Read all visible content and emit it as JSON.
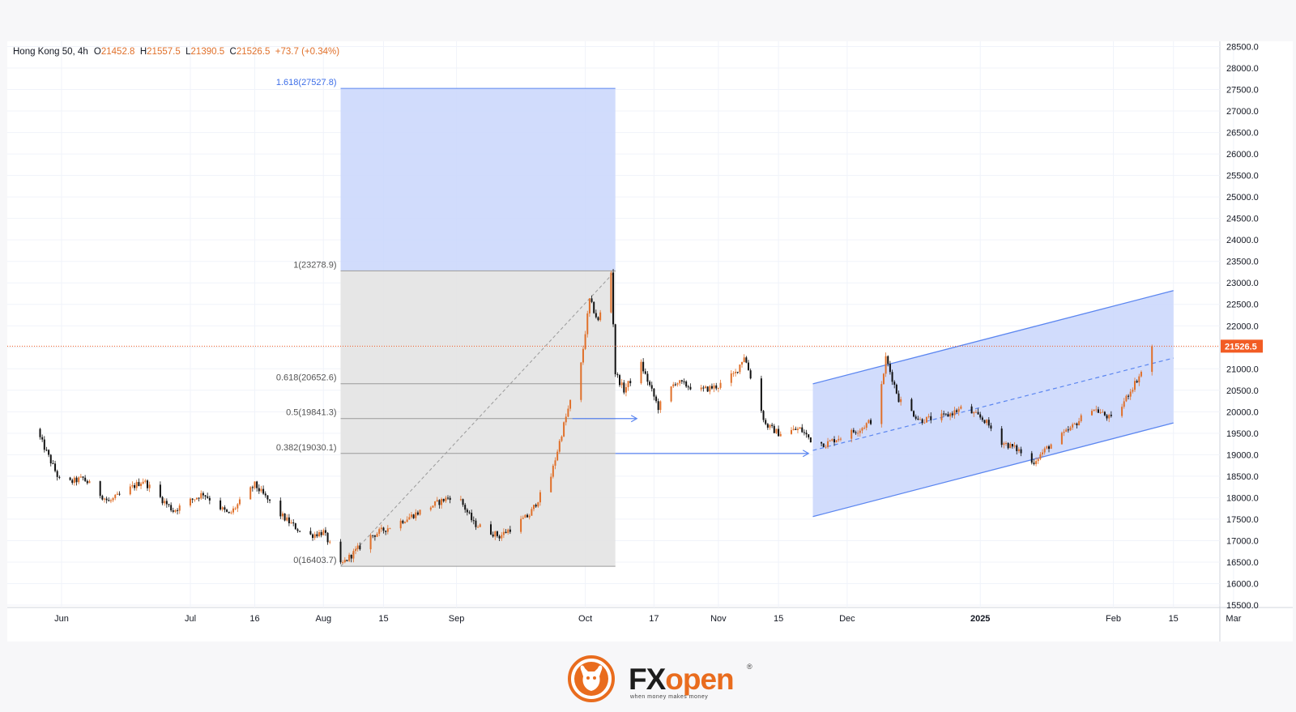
{
  "legend": {
    "symbol": "Hong Kong 50, 4h",
    "o_label": "O",
    "o_value": "21452.8",
    "h_label": "H",
    "h_value": "21557.5",
    "l_label": "L",
    "l_value": "21390.5",
    "c_label": "C",
    "c_value": "21526.5",
    "change": "+73.7 (+0.34%)"
  },
  "logo": {
    "word_fx": "FX",
    "word_open": "open",
    "tagline": "when money makes money",
    "registered": "®"
  },
  "colors": {
    "up_candle": "#e0702a",
    "down_candle": "#111111",
    "fib_zone": "#c9d6fb",
    "grey_zone": "#e3e3e3",
    "channel_line": "#5b86f0",
    "price_label_bg": "#f25c24",
    "axis_text": "#131722"
  },
  "chart_data": {
    "type": "candlestick",
    "symbol": "Hong Kong 50",
    "timeframe": "4h",
    "ylim": [
      15500,
      28500
    ],
    "y_ticks": [
      "28500.0",
      "28000.0",
      "27500.0",
      "27000.0",
      "26500.0",
      "26000.0",
      "25500.0",
      "25000.0",
      "24500.0",
      "24000.0",
      "23500.0",
      "23000.0",
      "22500.0",
      "22000.0",
      "21500.0",
      "21000.0",
      "20500.0",
      "20000.0",
      "19500.0",
      "19000.0",
      "18500.0",
      "18000.0",
      "17500.0",
      "17000.0",
      "16500.0",
      "16000.0",
      "15500.0"
    ],
    "x_ticks": [
      "Jun",
      "Jul",
      "16",
      "Aug",
      "15",
      "Sep",
      "Oct",
      "17",
      "Nov",
      "15",
      "Dec",
      "2025",
      "Feb",
      "15",
      "Mar"
    ],
    "x_ticks_bold": [
      "2025"
    ],
    "current_price": "21526.5",
    "price_path": [
      [
        "2024-05-26",
        19600
      ],
      [
        "2024-06-01",
        18300
      ],
      [
        "2024-06-06",
        18450
      ],
      [
        "2024-06-12",
        17900
      ],
      [
        "2024-06-20",
        18400
      ],
      [
        "2024-06-27",
        17700
      ],
      [
        "2024-07-04",
        18100
      ],
      [
        "2024-07-10",
        17600
      ],
      [
        "2024-07-16",
        18300
      ],
      [
        "2024-07-22",
        17600
      ],
      [
        "2024-07-28",
        17100
      ],
      [
        "2024-08-01",
        17200
      ],
      [
        "2024-08-05",
        16420
      ],
      [
        "2024-08-12",
        17100
      ],
      [
        "2024-08-20",
        17500
      ],
      [
        "2024-08-28",
        17900
      ],
      [
        "2024-09-01",
        18100
      ],
      [
        "2024-09-05",
        17400
      ],
      [
        "2024-09-11",
        17100
      ],
      [
        "2024-09-18",
        17600
      ],
      [
        "2024-09-23",
        18500
      ],
      [
        "2024-09-26",
        19700
      ],
      [
        "2024-09-30",
        21100
      ],
      [
        "2024-10-02",
        22600
      ],
      [
        "2024-10-04",
        22100
      ],
      [
        "2024-10-07",
        23250
      ],
      [
        "2024-10-08",
        20900
      ],
      [
        "2024-10-10",
        20500
      ],
      [
        "2024-10-14",
        21100
      ],
      [
        "2024-10-18",
        20100
      ],
      [
        "2024-10-22",
        20700
      ],
      [
        "2024-10-28",
        20500
      ],
      [
        "2024-11-01",
        20600
      ],
      [
        "2024-11-05",
        20900
      ],
      [
        "2024-11-07",
        21300
      ],
      [
        "2024-11-12",
        19700
      ],
      [
        "2024-11-15",
        19500
      ],
      [
        "2024-11-20",
        19600
      ],
      [
        "2024-11-23",
        19300
      ],
      [
        "2024-11-26",
        19250
      ],
      [
        "2024-11-29",
        19400
      ],
      [
        "2024-12-04",
        19600
      ],
      [
        "2024-12-08",
        19900
      ],
      [
        "2024-12-10",
        21250
      ],
      [
        "2024-12-13",
        20300
      ],
      [
        "2024-12-18",
        19800
      ],
      [
        "2024-12-24",
        19900
      ],
      [
        "2024-12-28",
        20100
      ],
      [
        "2025-01-02",
        19800
      ],
      [
        "2025-01-06",
        19300
      ],
      [
        "2025-01-10",
        19100
      ],
      [
        "2025-01-13",
        18800
      ],
      [
        "2025-01-17",
        19200
      ],
      [
        "2025-01-22",
        19600
      ],
      [
        "2025-01-27",
        20100
      ],
      [
        "2025-02-01",
        19800
      ],
      [
        "2025-02-05",
        20500
      ],
      [
        "2025-02-08",
        21000
      ],
      [
        "2025-02-10",
        21526.5
      ]
    ],
    "fibonacci": {
      "start_date": "2024-08-05",
      "end_date": "2024-10-08",
      "levels": [
        {
          "ratio": "1.618",
          "price": 27527.8,
          "label": "1.618(27527.8)"
        },
        {
          "ratio": "1",
          "price": 23278.9,
          "label": "1(23278.9)"
        },
        {
          "ratio": "0.618",
          "price": 20652.6,
          "label": "0.618(20652.6)"
        },
        {
          "ratio": "0.5",
          "price": 19841.3,
          "label": "0.5(19841.3)"
        },
        {
          "ratio": "0.382",
          "price": 19030.1,
          "label": "0.382(19030.1)"
        },
        {
          "ratio": "0",
          "price": 16403.7,
          "label": "0(16403.7)"
        }
      ]
    },
    "channel": {
      "start_date": "2024-11-23",
      "end_date": "2025-02-15",
      "upper": [
        20650,
        22820
      ],
      "middle": [
        19100,
        21250
      ],
      "lower": [
        17560,
        19740
      ]
    },
    "arrows": [
      {
        "from_date": "2024-09-28",
        "to_date": "2024-10-13",
        "price": 19841.3
      },
      {
        "from_date": "2024-10-08",
        "to_date": "2024-11-22",
        "price": 19030.1
      }
    ]
  }
}
